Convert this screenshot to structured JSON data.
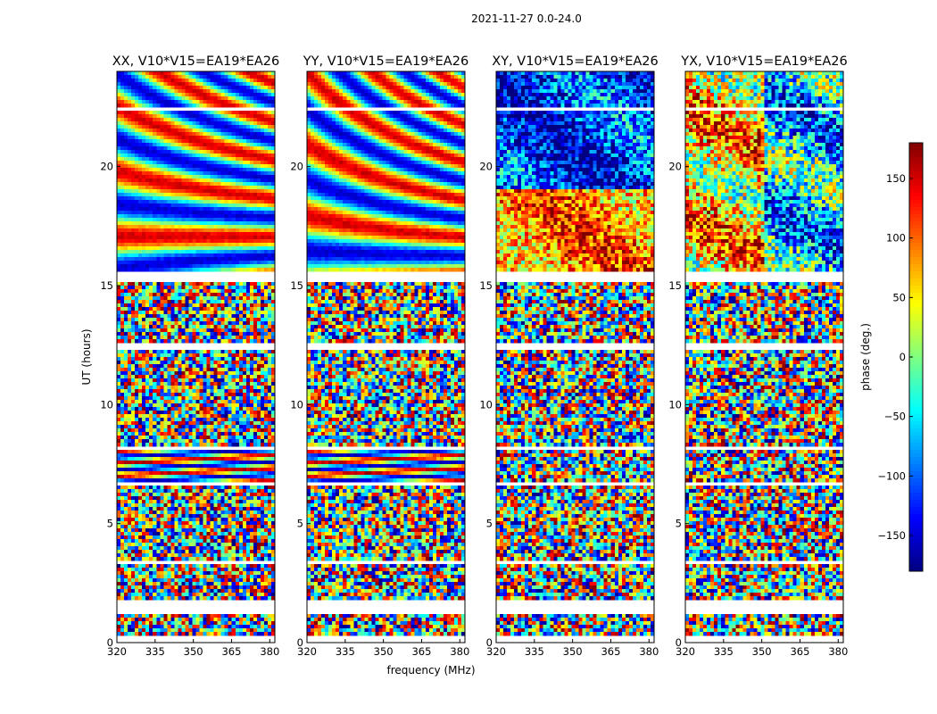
{
  "suptitle": "2021-11-27 0.0-24.0",
  "colors": {
    "axis": "#000000",
    "blank_band": "#ffffff",
    "colormap": "jet"
  },
  "chart_data": {
    "type": "heatmap",
    "xlabel": "frequency (MHz)",
    "ylabel": "UT (hours)",
    "xlim": [
      320,
      382
    ],
    "ylim": [
      0,
      24
    ],
    "x_ticks": [
      "320",
      "335",
      "350",
      "365",
      "380"
    ],
    "y_ticks": [
      "0",
      "5",
      "10",
      "15",
      "20"
    ],
    "panels": [
      {
        "title": "XX, V10*V15=EA19*EA26"
      },
      {
        "title": "YY, V10*V15=EA19*EA26"
      },
      {
        "title": "XY, V10*V15=EA19*EA26"
      },
      {
        "title": "YX, V10*V15=EA19*EA26"
      }
    ],
    "colorbar": {
      "label": "phase (deg.)",
      "range": [
        -180,
        180
      ],
      "ticks": [
        "150",
        "100",
        "50",
        "0",
        "−50",
        "−100",
        "−150"
      ]
    }
  }
}
